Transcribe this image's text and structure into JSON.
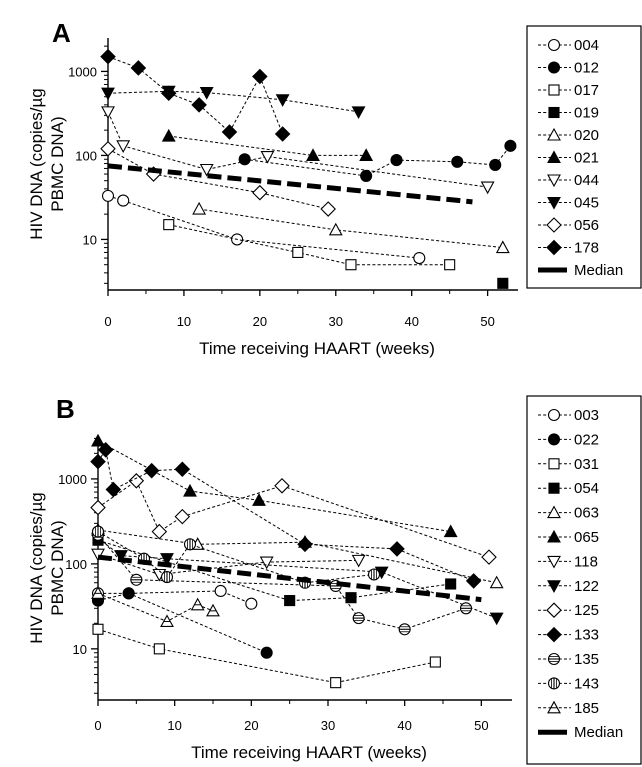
{
  "chart_data": [
    {
      "panel": "A",
      "type": "line",
      "xlabel": "Time receiving HAART (weeks)",
      "ylabel": [
        "HIV DNA (copies/µg",
        "PBMC DNA)"
      ],
      "xlim": [
        0,
        54
      ],
      "ylim": [
        2.5,
        2500
      ],
      "yscale": "log",
      "xticks": [
        0,
        10,
        20,
        30,
        40,
        50
      ],
      "yticks": [
        10,
        100,
        1000
      ],
      "legend_position": "right",
      "series": [
        {
          "name": "004",
          "marker": "circle",
          "filled": false,
          "x": [
            0,
            2,
            17,
            41
          ],
          "y": [
            33,
            29,
            10,
            6
          ]
        },
        {
          "name": "012",
          "marker": "circle",
          "filled": true,
          "x": [
            18,
            34,
            38,
            46,
            51,
            53
          ],
          "y": [
            90,
            57,
            88,
            84,
            77,
            130
          ]
        },
        {
          "name": "017",
          "marker": "square",
          "filled": false,
          "x": [
            8,
            25,
            32,
            45
          ],
          "y": [
            15,
            7,
            5,
            5
          ]
        },
        {
          "name": "019",
          "marker": "square",
          "filled": true,
          "x": [
            52
          ],
          "y": [
            3
          ]
        },
        {
          "name": "020",
          "marker": "triangle-up",
          "filled": false,
          "x": [
            12,
            30,
            52
          ],
          "y": [
            23,
            13,
            8
          ]
        },
        {
          "name": "021",
          "marker": "triangle-up",
          "filled": true,
          "x": [
            8,
            27,
            34
          ],
          "y": [
            170,
            100,
            100
          ]
        },
        {
          "name": "044",
          "marker": "triangle-down",
          "filled": false,
          "x": [
            0,
            2,
            13,
            21,
            50
          ],
          "y": [
            330,
            130,
            68,
            97,
            42
          ]
        },
        {
          "name": "045",
          "marker": "triangle-down",
          "filled": true,
          "x": [
            0,
            8,
            13,
            23,
            33
          ],
          "y": [
            550,
            580,
            560,
            460,
            330
          ]
        },
        {
          "name": "056",
          "marker": "diamond",
          "filled": false,
          "x": [
            0,
            6,
            20,
            29
          ],
          "y": [
            120,
            60,
            36,
            23
          ]
        },
        {
          "name": "178",
          "marker": "diamond",
          "filled": true,
          "x": [
            0,
            4,
            8,
            12,
            16,
            20,
            23
          ],
          "y": [
            1500,
            1100,
            550,
            400,
            190,
            870,
            180
          ]
        },
        {
          "name": "Median",
          "marker": "none",
          "median": true,
          "x": [
            0,
            48
          ],
          "y": [
            75,
            28
          ]
        }
      ]
    },
    {
      "panel": "B",
      "type": "line",
      "xlabel": "Time receiving HAART (weeks)",
      "ylabel": [
        "HIV DNA (copies/µg",
        "PBMC DNA)"
      ],
      "xlim": [
        0,
        54
      ],
      "ylim": [
        2.5,
        3200
      ],
      "yscale": "log",
      "xticks": [
        0,
        10,
        20,
        30,
        40,
        50
      ],
      "yticks": [
        10,
        100,
        1000
      ],
      "legend_position": "right",
      "series": [
        {
          "name": "003",
          "marker": "circle",
          "filled": false,
          "x": [
            0,
            4,
            16,
            20
          ],
          "y": [
            45,
            45,
            48,
            34
          ]
        },
        {
          "name": "022",
          "marker": "circle",
          "filled": true,
          "x": [
            0,
            4,
            22
          ],
          "y": [
            37,
            45,
            9
          ]
        },
        {
          "name": "031",
          "marker": "square",
          "filled": false,
          "x": [
            0,
            8,
            31,
            44
          ],
          "y": [
            17,
            10,
            4,
            7
          ]
        },
        {
          "name": "054",
          "marker": "square",
          "filled": true,
          "x": [
            0,
            25,
            33,
            46
          ],
          "y": [
            190,
            37,
            40,
            58
          ]
        },
        {
          "name": "063",
          "marker": "triangle-up",
          "filled": false,
          "x": [
            0,
            13,
            27,
            52
          ],
          "y": [
            250,
            170,
            180,
            60
          ]
        },
        {
          "name": "065",
          "marker": "triangle-up",
          "filled": true,
          "x": [
            0,
            12,
            21,
            46
          ],
          "y": [
            2800,
            720,
            560,
            240
          ]
        },
        {
          "name": "118",
          "marker": "triangle-down",
          "filled": false,
          "x": [
            0,
            8,
            22,
            34
          ],
          "y": [
            130,
            75,
            105,
            110
          ]
        },
        {
          "name": "122",
          "marker": "triangle-down",
          "filled": true,
          "x": [
            0,
            3,
            9,
            37,
            52
          ],
          "y": [
            200,
            125,
            115,
            80,
            23
          ]
        },
        {
          "name": "125",
          "marker": "diamond",
          "filled": false,
          "x": [
            0,
            5,
            8,
            11,
            24,
            51
          ],
          "y": [
            460,
            950,
            240,
            360,
            830,
            120
          ]
        },
        {
          "name": "133",
          "marker": "diamond",
          "filled": true,
          "x": [
            0,
            1,
            2,
            7,
            11,
            27,
            39,
            49
          ],
          "y": [
            1600,
            2200,
            750,
            1250,
            1300,
            170,
            150,
            63
          ]
        },
        {
          "name": "135",
          "marker": "ellipse-h",
          "filled": false,
          "x": [
            0,
            5,
            31,
            34,
            40,
            48
          ],
          "y": [
            220,
            65,
            55,
            23,
            17,
            30
          ]
        },
        {
          "name": "143",
          "marker": "ellipse-v",
          "filled": false,
          "x": [
            0,
            6,
            9,
            12,
            27,
            36
          ],
          "y": [
            240,
            115,
            70,
            170,
            60,
            75
          ]
        },
        {
          "name": "185",
          "marker": "triangle-half",
          "filled": false,
          "x": [
            0,
            9,
            13,
            15
          ],
          "y": [
            45,
            21,
            33,
            28
          ]
        },
        {
          "name": "Median",
          "marker": "none",
          "median": true,
          "x": [
            0,
            50
          ],
          "y": [
            120,
            38
          ]
        }
      ]
    }
  ]
}
